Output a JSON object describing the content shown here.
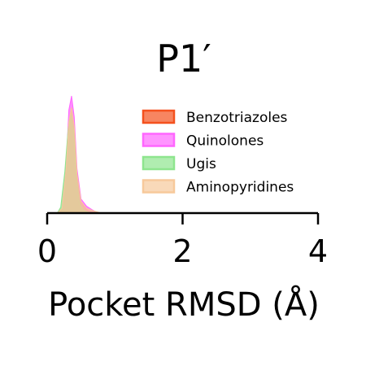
{
  "chart_data": {
    "type": "area",
    "title": "P1′",
    "xlabel": "Pocket RMSD (Å)",
    "ylabel": "",
    "xlim": [
      0,
      4
    ],
    "xticks": [
      0,
      2,
      4
    ],
    "xtick_labels": [
      "0",
      "2",
      "4"
    ],
    "grid": false,
    "legend_position": "right",
    "series": [
      {
        "name": "Benzotriazoles",
        "color": "#f4511e",
        "points": [
          [
            0.15,
            0
          ],
          [
            0.22,
            0.03
          ],
          [
            0.28,
            0.35
          ],
          [
            0.32,
            0.75
          ],
          [
            0.36,
            0.9
          ],
          [
            0.4,
            0.72
          ],
          [
            0.44,
            0.32
          ],
          [
            0.5,
            0.09
          ],
          [
            0.58,
            0.03
          ],
          [
            0.65,
            0.01
          ],
          [
            0.75,
            0
          ]
        ]
      },
      {
        "name": "Quinolones",
        "color": "#ff66ff",
        "points": [
          [
            0.15,
            0
          ],
          [
            0.22,
            0.04
          ],
          [
            0.28,
            0.4
          ],
          [
            0.32,
            0.88
          ],
          [
            0.36,
            1.0
          ],
          [
            0.4,
            0.82
          ],
          [
            0.44,
            0.38
          ],
          [
            0.5,
            0.12
          ],
          [
            0.58,
            0.06
          ],
          [
            0.66,
            0.03
          ],
          [
            0.75,
            0
          ]
        ]
      },
      {
        "name": "Ugis",
        "color": "#8ee58e",
        "points": [
          [
            0.15,
            0
          ],
          [
            0.2,
            0.05
          ],
          [
            0.26,
            0.35
          ],
          [
            0.31,
            0.72
          ],
          [
            0.35,
            0.85
          ],
          [
            0.39,
            0.7
          ],
          [
            0.43,
            0.3
          ],
          [
            0.48,
            0.08
          ],
          [
            0.55,
            0.02
          ],
          [
            0.65,
            0
          ]
        ]
      },
      {
        "name": "Aminopyridines",
        "color": "#f7c99b",
        "points": [
          [
            0.15,
            0
          ],
          [
            0.22,
            0.04
          ],
          [
            0.28,
            0.38
          ],
          [
            0.32,
            0.78
          ],
          [
            0.36,
            0.9
          ],
          [
            0.4,
            0.74
          ],
          [
            0.44,
            0.34
          ],
          [
            0.5,
            0.1
          ],
          [
            0.58,
            0.04
          ],
          [
            0.68,
            0.02
          ],
          [
            0.8,
            0
          ]
        ]
      }
    ]
  }
}
